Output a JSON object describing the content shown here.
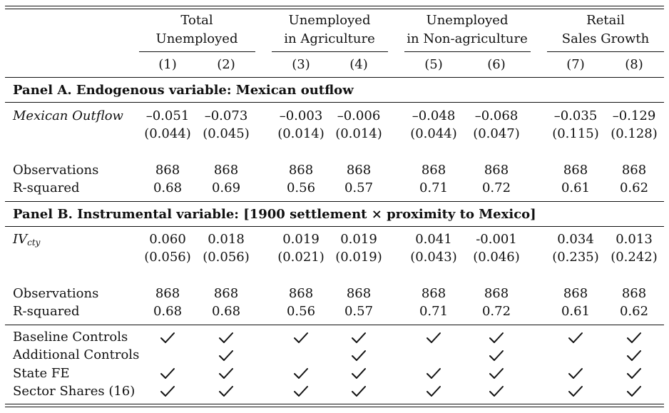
{
  "header": {
    "groups": [
      {
        "line1": "Total",
        "line2": "Unemployed"
      },
      {
        "line1": "Unemployed",
        "line2": "in Agriculture"
      },
      {
        "line1": "Unemployed",
        "line2": "in Non-agriculture"
      },
      {
        "line1": "Retail",
        "line2": "Sales Growth"
      }
    ],
    "columns": [
      "(1)",
      "(2)",
      "(3)",
      "(4)",
      "(5)",
      "(6)",
      "(7)",
      "(8)"
    ]
  },
  "panelA": {
    "title": "Panel A. Endogenous variable: Mexican outflow",
    "var_label": "Mexican Outflow",
    "coefs": [
      "–0.051",
      "–0.073",
      "–0.003",
      "–0.006",
      "–0.048",
      "–0.068",
      "–0.035",
      "–0.129"
    ],
    "ses": [
      "(0.044)",
      "(0.045)",
      "(0.014)",
      "(0.014)",
      "(0.044)",
      "(0.047)",
      "(0.115)",
      "(0.128)"
    ],
    "obs_label": "Observations",
    "obs": [
      "868",
      "868",
      "868",
      "868",
      "868",
      "868",
      "868",
      "868"
    ],
    "r2_label": "R-squared",
    "r2": [
      "0.68",
      "0.69",
      "0.56",
      "0.57",
      "0.71",
      "0.72",
      "0.61",
      "0.62"
    ]
  },
  "panelB": {
    "title": "Panel B. Instrumental variable: [1900 settlement × proximity to Mexico]",
    "var_label": "IV",
    "var_sub": "cty",
    "coefs": [
      "0.060",
      "0.018",
      "0.019",
      "0.019",
      "0.041",
      "-0.001",
      "0.034",
      "0.013"
    ],
    "ses": [
      "(0.056)",
      "(0.056)",
      "(0.021)",
      "(0.019)",
      "(0.043)",
      "(0.046)",
      "(0.235)",
      "(0.242)"
    ],
    "obs_label": "Observations",
    "obs": [
      "868",
      "868",
      "868",
      "868",
      "868",
      "868",
      "868",
      "868"
    ],
    "r2_label": "R-squared",
    "r2": [
      "0.68",
      "0.68",
      "0.56",
      "0.57",
      "0.71",
      "0.72",
      "0.61",
      "0.62"
    ]
  },
  "controls": [
    {
      "label": "Baseline Controls",
      "checks": [
        true,
        true,
        true,
        true,
        true,
        true,
        true,
        true
      ]
    },
    {
      "label": "Additional Controls",
      "checks": [
        false,
        true,
        false,
        true,
        false,
        true,
        false,
        true
      ]
    },
    {
      "label": "State FE",
      "checks": [
        true,
        true,
        true,
        true,
        true,
        true,
        true,
        true
      ]
    },
    {
      "label": "Sector Shares (16)",
      "checks": [
        true,
        true,
        true,
        true,
        true,
        true,
        true,
        true
      ]
    }
  ]
}
